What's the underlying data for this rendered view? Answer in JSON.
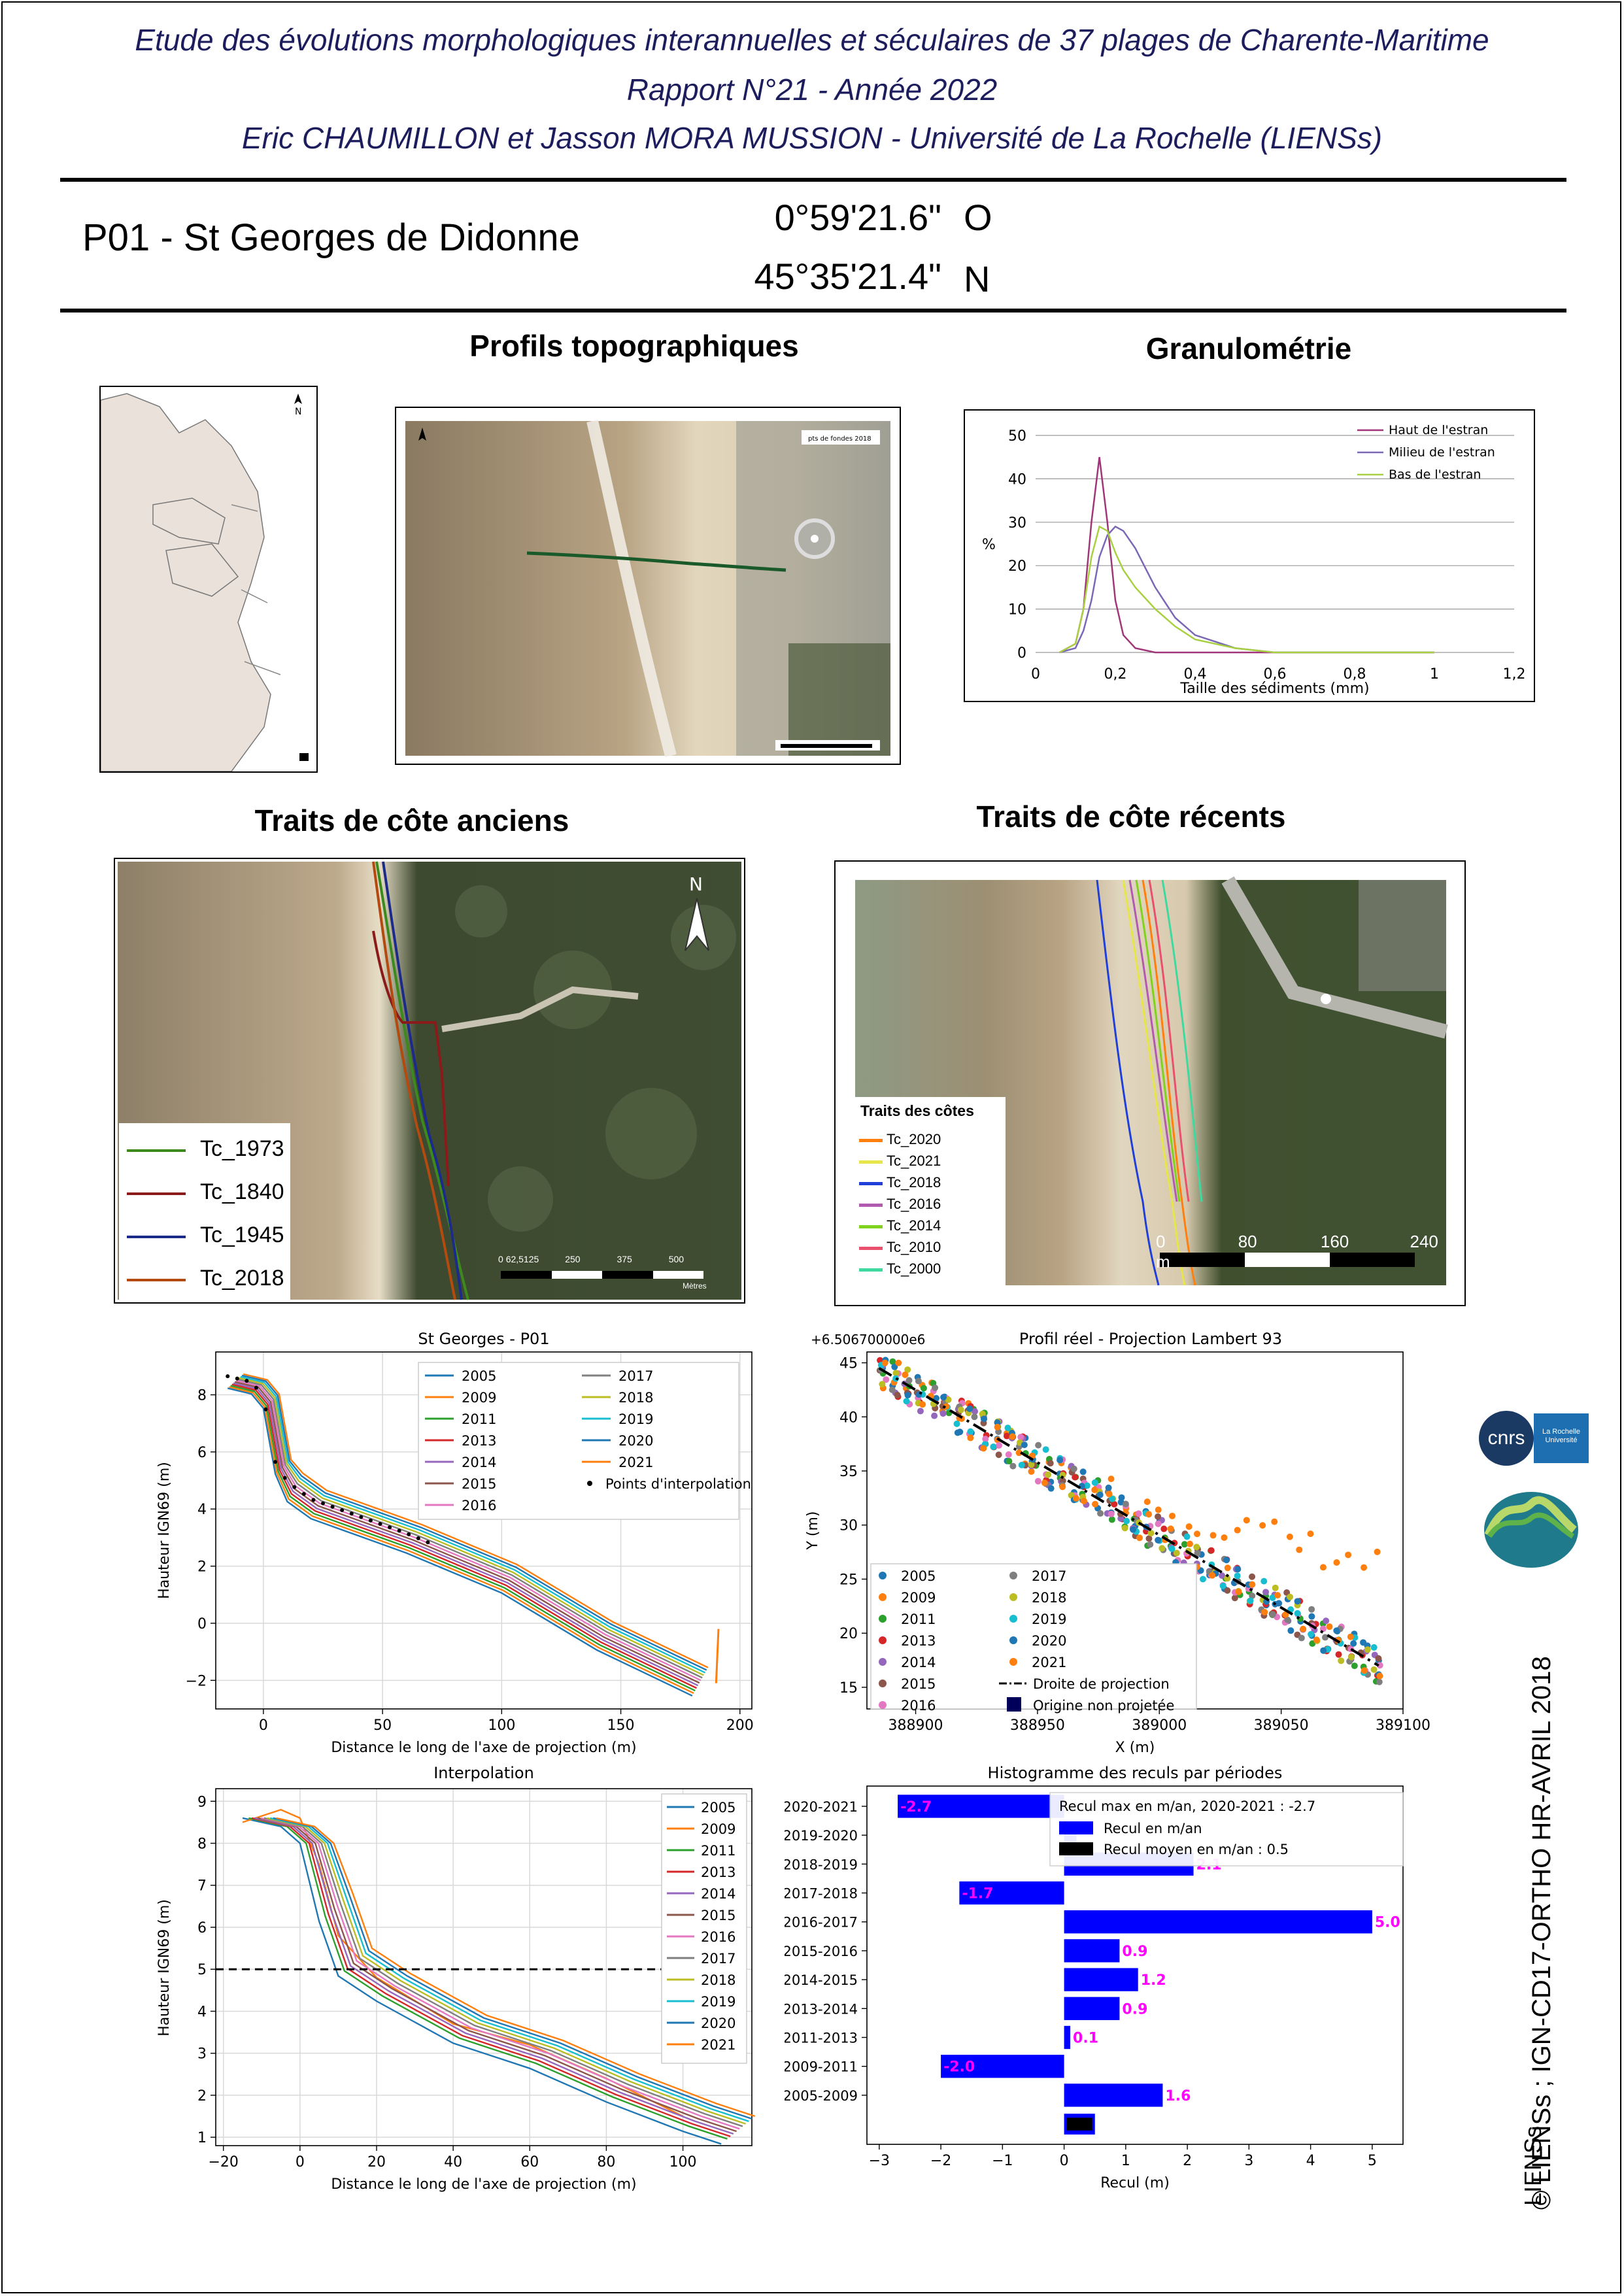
{
  "header": {
    "line1": "Etude des évolutions morphologiques interannuelles et séculaires de 37 plages de Charente-Maritime",
    "line2": "Rapport N°21 - Année 2022",
    "line3": "Eric CHAUMILLON et Jasson MORA MUSSION - Université de La Rochelle (LIENSs)"
  },
  "site": {
    "name": "P01 -  St Georges de Didonne",
    "lon": "0°59'21.6\"",
    "lon_dir": "O",
    "lat": "45°35'21.4\"",
    "lat_dir": "N"
  },
  "sections": {
    "profils": "Profils topographiques",
    "granulo": "Granulométrie",
    "anciens": "Traits de côte anciens",
    "recents": "Traits de côte récents"
  },
  "map_small": {
    "north": "N"
  },
  "profile_map": {
    "legend": "pts de fondes 2018"
  },
  "granulo_chart": {
    "ylabel": "%",
    "xlabel": "Taille des sédiments (mm)",
    "legend": [
      "Haut de l'estran",
      "Milieu de l'estran",
      "Bas de l'estran"
    ],
    "colors": [
      "#a0357a",
      "#7b68b4",
      "#a8d040"
    ],
    "xticks": [
      "0",
      "0,2",
      "0,4",
      "0,6",
      "0,8",
      "1",
      "1,2"
    ],
    "yticks": [
      "0",
      "10",
      "20",
      "30",
      "40",
      "50"
    ],
    "chart_data": {
      "type": "line",
      "x": [
        0.06,
        0.1,
        0.12,
        0.14,
        0.16,
        0.18,
        0.2,
        0.22,
        0.25,
        0.3,
        0.35,
        0.4,
        0.5,
        0.6,
        1.0
      ],
      "series": [
        {
          "name": "Haut de l'estran",
          "values": [
            0,
            2,
            10,
            30,
            45,
            30,
            12,
            4,
            1,
            0,
            0,
            0,
            0,
            0,
            0
          ]
        },
        {
          "name": "Milieu de l'estran",
          "values": [
            0,
            1,
            5,
            12,
            22,
            27,
            29,
            28,
            24,
            15,
            8,
            4,
            1,
            0,
            0
          ]
        },
        {
          "name": "Bas de l'estran",
          "values": [
            0,
            2,
            10,
            22,
            29,
            28,
            23,
            19,
            15,
            10,
            6,
            3,
            1,
            0,
            0
          ]
        }
      ],
      "xlim": [
        0,
        1.2
      ],
      "ylim": [
        0,
        50
      ]
    }
  },
  "anciens_legend": [
    {
      "label": "Tc_1973",
      "color": "#3c8a1e"
    },
    {
      "label": "Tc_1840",
      "color": "#8b1a1a"
    },
    {
      "label": "Tc_1945",
      "color": "#1c2a8a"
    },
    {
      "label": "Tc_2018",
      "color": "#b34a10"
    }
  ],
  "anciens_scale": {
    "ticks": [
      "0",
      "62,5125",
      "250",
      "375",
      "500"
    ],
    "unit": "Mètres"
  },
  "recents_legend": {
    "title": "Traits des côtes",
    "items": [
      {
        "label": "Tc_2020",
        "color": "#ff7f0e"
      },
      {
        "label": "Tc_2021",
        "color": "#e6e64a"
      },
      {
        "label": "Tc_2018",
        "color": "#1f3fd8"
      },
      {
        "label": "Tc_2016",
        "color": "#b05ab0"
      },
      {
        "label": "Tc_2014",
        "color": "#7fd21e"
      },
      {
        "label": "Tc_2010",
        "color": "#e8506e"
      },
      {
        "label": "Tc_2000",
        "color": "#3fd9a0"
      }
    ]
  },
  "recents_scale": {
    "ticks": [
      "0",
      "80",
      "160",
      "240 m"
    ]
  },
  "chart_profiles": {
    "title": "St Georges - P01",
    "xlabel": "Distance le long de l'axe de projection (m)",
    "ylabel": "Hauteur IGN69 (m)",
    "xticks": [
      "0",
      "50",
      "100",
      "150",
      "200"
    ],
    "yticks": [
      "−2",
      "0",
      "2",
      "4",
      "6",
      "8"
    ],
    "legend": [
      "2005",
      "2009",
      "2011",
      "2013",
      "2014",
      "2015",
      "2016",
      "2017",
      "2018",
      "2019",
      "2020",
      "2021"
    ],
    "legend_extra": "Points d'interpolation",
    "colors": [
      "#1f77b4",
      "#ff7f0e",
      "#2ca02c",
      "#d62728",
      "#9467bd",
      "#8c564b",
      "#e377c2",
      "#7f7f7f",
      "#bcbd22",
      "#17becf",
      "#1f77b4",
      "#ff7f0e"
    ],
    "chart_data": {
      "type": "line",
      "xlim": [
        -20,
        205
      ],
      "ylim": [
        -3,
        9.5
      ],
      "x": [
        -15,
        -5,
        0,
        5,
        10,
        20,
        40,
        60,
        80,
        100,
        120,
        140,
        160,
        180,
        190
      ],
      "series": [
        {
          "name": "2005",
          "values": [
            8.5,
            8.3,
            7.8,
            5.5,
            4.8,
            4.2,
            3.6,
            3.0,
            2.3,
            1.6,
            0.6,
            -0.4,
            -1.2,
            -2.0,
            null
          ]
        },
        {
          "name": "2021",
          "values": [
            8.6,
            8.4,
            7.6,
            5.0,
            4.5,
            4.0,
            3.5,
            2.8,
            2.2,
            1.6,
            0.9,
            -0.2,
            -1.0,
            -1.8,
            -2.1
          ]
        }
      ]
    }
  },
  "chart_xy": {
    "title": "Profil réel - Projection Lambert 93",
    "offset": "+6.506700000e6",
    "xlabel": "X (m)",
    "ylabel": "Y (m)",
    "xticks": [
      "388900",
      "388950",
      "389000",
      "389050",
      "389100"
    ],
    "yticks": [
      "15",
      "20",
      "25",
      "30",
      "35",
      "40",
      "45"
    ],
    "legend": [
      "2005",
      "2009",
      "2011",
      "2013",
      "2014",
      "2015",
      "2016",
      "2017",
      "2018",
      "2019",
      "2020",
      "2021"
    ],
    "legend_line": "Droite de projection",
    "legend_square": "Origine non projetée",
    "chart_data": {
      "type": "scatter",
      "xlim": [
        388880,
        389100
      ],
      "ylim": [
        13,
        46
      ],
      "projection_line": {
        "x": [
          388885,
          389090
        ],
        "y": [
          44.5,
          17
        ]
      }
    }
  },
  "chart_interp": {
    "title": "Interpolation",
    "xlabel": "Distance le long de l'axe de projection (m)",
    "ylabel": "Hauteur IGN69 (m)",
    "xticks": [
      "−20",
      "0",
      "20",
      "40",
      "60",
      "80",
      "100"
    ],
    "yticks": [
      "1",
      "2",
      "3",
      "4",
      "5",
      "6",
      "7",
      "8",
      "9"
    ],
    "legend": [
      "2005",
      "2009",
      "2011",
      "2013",
      "2014",
      "2015",
      "2016",
      "2017",
      "2018",
      "2019",
      "2020",
      "2021"
    ],
    "chart_data": {
      "type": "line",
      "xlim": [
        -22,
        118
      ],
      "ylim": [
        0.8,
        9.3
      ],
      "hline": 5,
      "x": [
        -15,
        -5,
        0,
        5,
        10,
        20,
        40,
        60,
        80,
        100,
        110
      ],
      "series": [
        {
          "name": "2005",
          "values": [
            8.6,
            8.4,
            8.0,
            6.5,
            5.2,
            4.6,
            3.6,
            3.0,
            2.2,
            1.5,
            1.2
          ]
        },
        {
          "name": "2009",
          "values": [
            8.5,
            8.8,
            8.6,
            7.5,
            5.8,
            4.8,
            3.7,
            3.2,
            2.4,
            1.5,
            null
          ]
        }
      ]
    }
  },
  "chart_hist": {
    "title": "Histogramme des reculs par périodes",
    "xlabel": "Recul (m)",
    "xticks": [
      "−3",
      "−2",
      "−1",
      "0",
      "1",
      "2",
      "3",
      "4",
      "5"
    ],
    "legend_max": "Recul max en m/an, 2020-2021 : -2.7",
    "legend_bar": "Recul en m/an",
    "legend_mean": "Recul moyen en m/an : 0.5",
    "chart_data": {
      "type": "bar",
      "orientation": "horizontal",
      "categories": [
        "2005-2009",
        "2009-2011",
        "2011-2013",
        "2013-2014",
        "2014-2015",
        "2015-2016",
        "2016-2017",
        "2017-2018",
        "2018-2019",
        "2019-2020",
        "2020-2021"
      ],
      "values": [
        1.6,
        -2.0,
        0.1,
        0.9,
        1.2,
        0.9,
        5.0,
        -1.7,
        2.1,
        0.2,
        -2.7
      ],
      "labels": [
        "1.6",
        "-2.0",
        "0.1",
        "0.9",
        "1.2",
        "0.9",
        "5.0",
        "-1.7",
        "2.1",
        "",
        "-2.7"
      ],
      "mean": 0.5,
      "xlim": [
        -3.2,
        5.5
      ],
      "bar_color": "#0000ff",
      "label_color": "#ff00ff"
    }
  },
  "logos": {
    "cnrs": "cnrs",
    "univ": "La Rochelle Université",
    "liens": "LIENSs"
  },
  "credit": "© LIENSs ; IGN-CD17-ORTHO HR-AVRIL 2018"
}
